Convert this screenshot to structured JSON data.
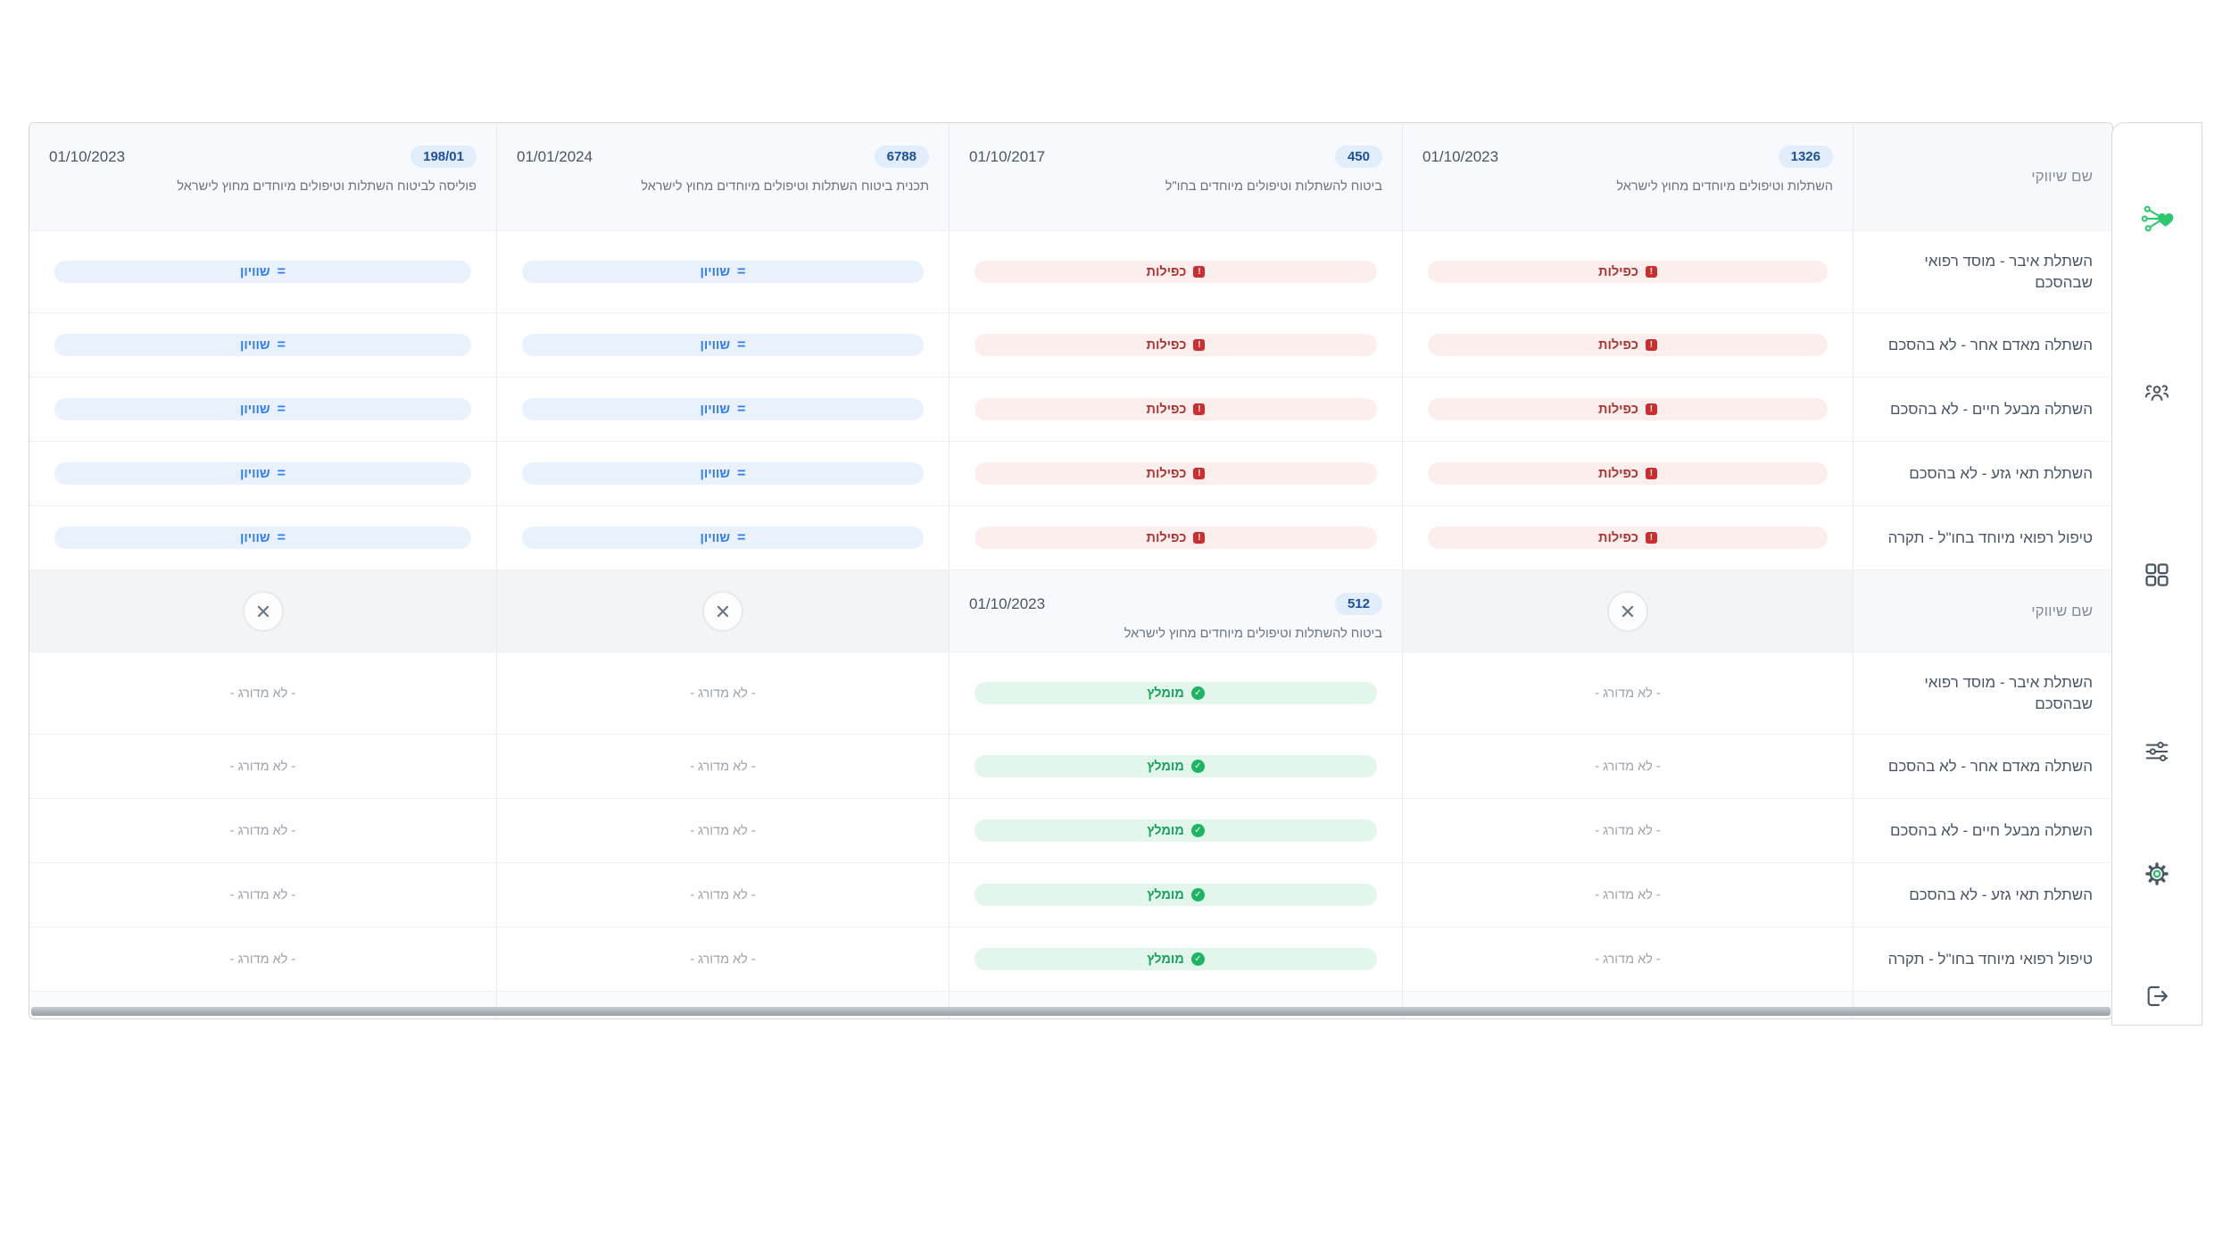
{
  "colors": {
    "accent_green": "#2dc76d",
    "equal_text": "#2e7df6",
    "duplicate_text": "#b03232",
    "recommended_text": "#17a35b",
    "code_pill_bg": "#e2edfb",
    "code_pill_text": "#1d4f9e"
  },
  "sidebar": {
    "icons": [
      {
        "name": "logo-heart-network-icon"
      },
      {
        "name": "users-icon"
      },
      {
        "name": "grid-icon"
      },
      {
        "name": "sliders-icon"
      },
      {
        "name": "settings-gear-icon"
      },
      {
        "name": "logout-icon"
      }
    ]
  },
  "table": {
    "name_header": "שם שיווקי",
    "row_names": [
      "השתלת איבר - מוסד רפואי שבהסכם",
      "השתלה מאדם אחר - לא בהסכם",
      "השתלה מבעל חיים - לא בהסכם",
      "השתלת תאי גזע - לא בהסכם",
      "טיפול רפואי מיוחד בחו\"ל - תקרה"
    ],
    "statuses": {
      "equal": {
        "label": "שוויון"
      },
      "duplicate": {
        "label": "כפילות"
      },
      "recommended": {
        "label": "מומלץ"
      },
      "not_rated": {
        "label": "- לא מדורג -"
      }
    },
    "sections": [
      {
        "columns": [
          {
            "date": "01/10/2023",
            "code": "198/01",
            "description": "פוליסה לביטוח השתלות וטיפולים מיוחדים מחוץ לישראל",
            "cells": [
              "equal",
              "equal",
              "equal",
              "equal",
              "equal"
            ]
          },
          {
            "date": "01/01/2024",
            "code": "6788",
            "description": "תכנית ביטוח השתלות וטיפולים מיוחדים מחוץ לישראל",
            "cells": [
              "equal",
              "equal",
              "equal",
              "equal",
              "equal"
            ]
          },
          {
            "date": "01/10/2017",
            "code": "450",
            "description": "ביטוח להשתלות וטיפולים מיוחדים בחו\"ל",
            "cells": [
              "duplicate",
              "duplicate",
              "duplicate",
              "duplicate",
              "duplicate"
            ]
          },
          {
            "date": "01/10/2023",
            "code": "1326",
            "description": "השתלות וטיפולים מיוחדים מחוץ לישראל",
            "cells": [
              "duplicate",
              "duplicate",
              "duplicate",
              "duplicate",
              "duplicate"
            ]
          }
        ]
      },
      {
        "columns": [
          {
            "removed": true,
            "cells": [
              "not_rated",
              "not_rated",
              "not_rated",
              "not_rated",
              "not_rated"
            ]
          },
          {
            "removed": true,
            "cells": [
              "not_rated",
              "not_rated",
              "not_rated",
              "not_rated",
              "not_rated"
            ]
          },
          {
            "date": "01/10/2023",
            "code": "512",
            "description": "ביטוח להשתלות וטיפולים מיוחדים מחוץ לישראל",
            "cells": [
              "recommended",
              "recommended",
              "recommended",
              "recommended",
              "recommended"
            ]
          },
          {
            "removed": true,
            "cells": [
              "not_rated",
              "not_rated",
              "not_rated",
              "not_rated",
              "not_rated"
            ]
          }
        ]
      }
    ]
  }
}
